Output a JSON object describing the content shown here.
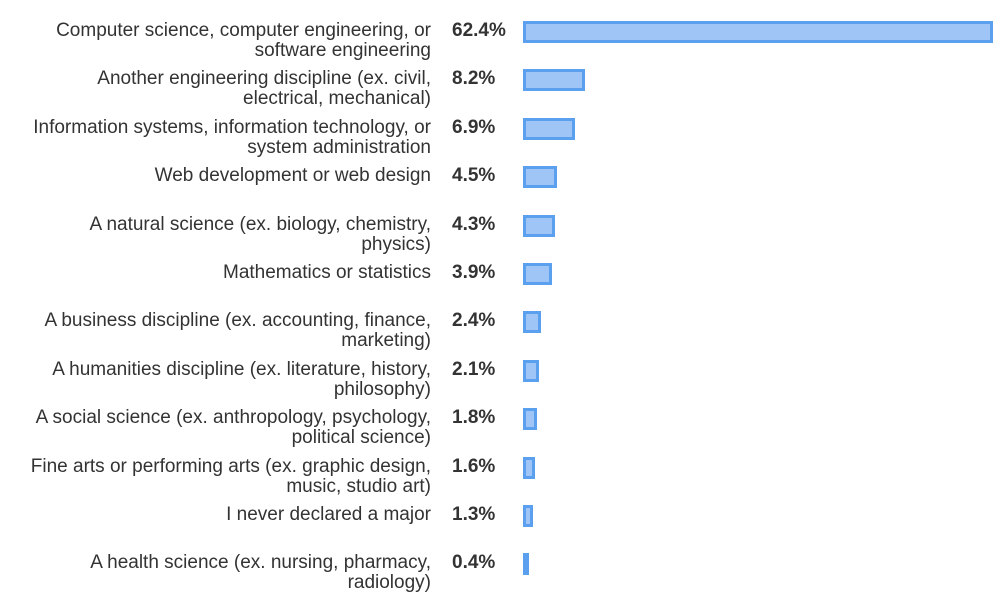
{
  "chart_data": {
    "type": "bar",
    "orientation": "horizontal",
    "title": "",
    "xlabel": "",
    "ylabel": "",
    "grid": false,
    "legend": "none",
    "colors": {
      "bar_fill": "#9ec5f5",
      "bar_border": "#5ba0ee",
      "text": "#333333"
    },
    "xlim": [
      0,
      62.4
    ],
    "categories": [
      [
        "Computer science, computer engineering, or",
        "software engineering"
      ],
      [
        "Another engineering discipline (ex. civil,",
        "electrical, mechanical)"
      ],
      [
        "Information systems, information technology, or",
        "system administration"
      ],
      [
        "Web development or web design"
      ],
      [
        "A natural science (ex. biology, chemistry,",
        "physics)"
      ],
      [
        "Mathematics or statistics"
      ],
      [
        "A business discipline (ex. accounting, finance,",
        "marketing)"
      ],
      [
        "A humanities discipline (ex. literature, history,",
        "philosophy)"
      ],
      [
        "A social science (ex. anthropology, psychology,",
        "political science)"
      ],
      [
        "Fine arts or performing arts (ex. graphic design,",
        "music, studio art)"
      ],
      [
        "I never declared a major"
      ],
      [
        "A health science (ex. nursing, pharmacy,",
        "radiology)"
      ]
    ],
    "values": [
      62.4,
      8.2,
      6.9,
      4.5,
      4.3,
      3.9,
      2.4,
      2.1,
      1.8,
      1.6,
      1.3,
      0.4
    ],
    "value_labels": [
      "62.4%",
      "8.2%",
      "6.9%",
      "4.5%",
      "4.3%",
      "3.9%",
      "2.4%",
      "2.1%",
      "1.8%",
      "1.6%",
      "1.3%",
      "0.4%"
    ]
  }
}
